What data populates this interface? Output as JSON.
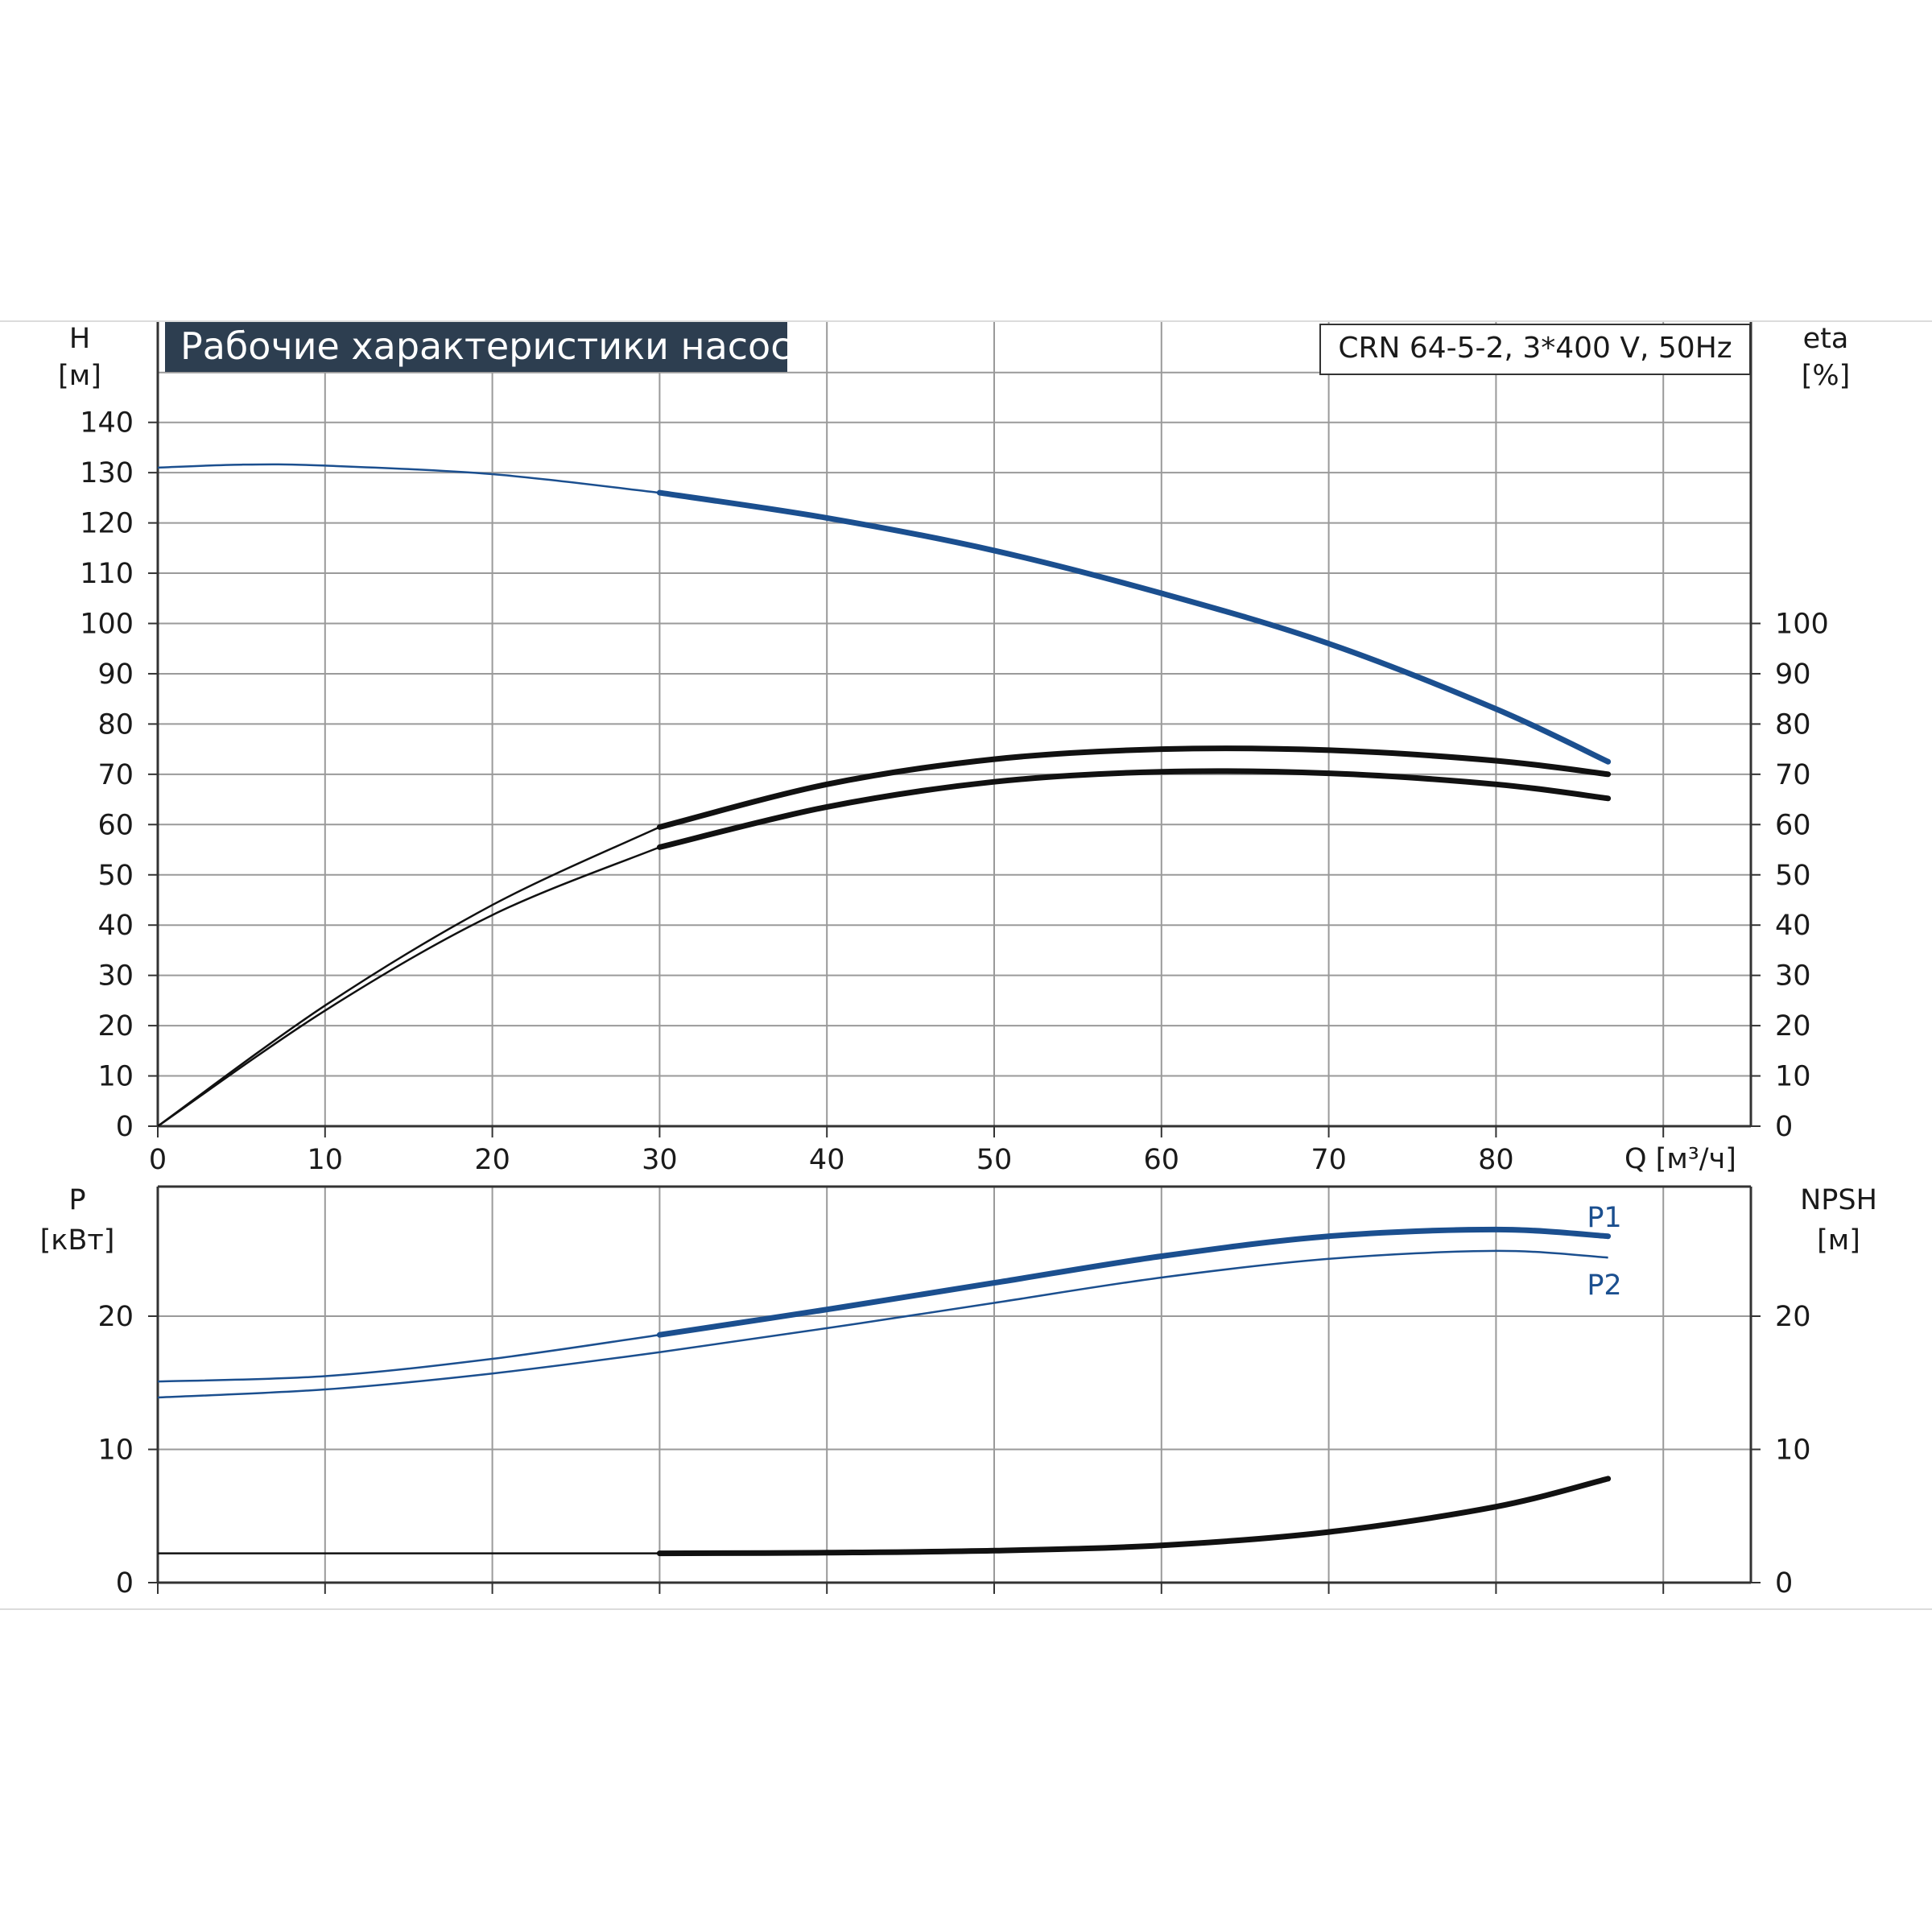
{
  "title": "Рабочие характеристики насоса",
  "model": "CRN 64-5-2, 3*400 V, 50Hz",
  "colors": {
    "blue": "#1b4f8f",
    "black": "#111111",
    "title_bg": "#2d3e50",
    "grid": "#9a9a9a"
  },
  "chart_data": [
    {
      "type": "line",
      "name": "head-efficiency",
      "xlabel": "Q [м³/ч]",
      "ylabel_left": [
        "H",
        "[м]"
      ],
      "ylabel_right": [
        "eta",
        "[%]"
      ],
      "x_ticks": [
        "0",
        "10",
        "20",
        "30",
        "40",
        "50",
        "60",
        "70",
        "80"
      ],
      "y_ticks_left": [
        "0",
        "10",
        "20",
        "30",
        "40",
        "50",
        "60",
        "70",
        "80",
        "90",
        "100",
        "110",
        "120",
        "130",
        "140"
      ],
      "y_ticks_right": [
        "0",
        "10",
        "20",
        "30",
        "40",
        "50",
        "60",
        "70",
        "80",
        "90",
        "100"
      ],
      "xlim": [
        0,
        95
      ],
      "ylim": [
        0,
        150
      ],
      "grid": true,
      "series": [
        {
          "key": "H",
          "color": "#1b4f8f",
          "thick_from": 30,
          "points": [
            [
              0,
              131
            ],
            [
              5,
              131.6
            ],
            [
              10,
              131.4
            ],
            [
              20,
              129.7
            ],
            [
              30,
              126
            ],
            [
              40,
              121
            ],
            [
              50,
              114.5
            ],
            [
              60,
              106
            ],
            [
              70,
              96
            ],
            [
              80,
              83
            ],
            [
              86.7,
              72.5
            ]
          ]
        },
        {
          "key": "eta",
          "color": "#111111",
          "thick_from": 30,
          "points": [
            [
              0,
              0
            ],
            [
              10,
              24
            ],
            [
              20,
              44
            ],
            [
              30,
              59.5
            ],
            [
              40,
              68
            ],
            [
              50,
              73
            ],
            [
              60,
              75
            ],
            [
              70,
              74.8
            ],
            [
              80,
              72.7
            ],
            [
              86.7,
              70
            ]
          ]
        },
        {
          "key": "eta2",
          "color": "#111111",
          "thick_from": 30,
          "points": [
            [
              0,
              0
            ],
            [
              10,
              23
            ],
            [
              20,
              42
            ],
            [
              30,
              55.5
            ],
            [
              40,
              63.5
            ],
            [
              50,
              68.5
            ],
            [
              60,
              70.5
            ],
            [
              70,
              70.2
            ],
            [
              80,
              68
            ],
            [
              86.7,
              65.2
            ]
          ]
        }
      ]
    },
    {
      "type": "line",
      "name": "power-npsh",
      "xlabel": "",
      "ylabel_left": [
        "P",
        "[кВт]"
      ],
      "ylabel_right": [
        "NPSH",
        "[м]"
      ],
      "y_ticks_left": [
        "0",
        "10",
        "20"
      ],
      "y_ticks_right": [
        "0",
        "10",
        "20"
      ],
      "xlim": [
        0,
        95
      ],
      "ylim": [
        0,
        30
      ],
      "grid": true,
      "series": [
        {
          "key": "P1",
          "name": "P1",
          "color": "#1b4f8f",
          "thick_from": 30,
          "points": [
            [
              0,
              15.1
            ],
            [
              10,
              15.5
            ],
            [
              20,
              16.8
            ],
            [
              30,
              18.6
            ],
            [
              40,
              20.5
            ],
            [
              50,
              22.5
            ],
            [
              60,
              24.5
            ],
            [
              70,
              26
            ],
            [
              80,
              26.5
            ],
            [
              86.7,
              26
            ]
          ]
        },
        {
          "key": "P2",
          "name": "P2",
          "color": "#1b4f8f",
          "thick_from": 86.8,
          "points": [
            [
              0,
              13.9
            ],
            [
              10,
              14.5
            ],
            [
              20,
              15.7
            ],
            [
              30,
              17.3
            ],
            [
              40,
              19.1
            ],
            [
              50,
              21
            ],
            [
              60,
              22.9
            ],
            [
              70,
              24.3
            ],
            [
              80,
              24.9
            ],
            [
              86.7,
              24.4
            ]
          ]
        },
        {
          "key": "NPSH",
          "color": "#111111",
          "thick_from": 30,
          "points": [
            [
              0,
              2.2
            ],
            [
              10,
              2.2
            ],
            [
              20,
              2.2
            ],
            [
              30,
              2.2
            ],
            [
              40,
              2.25
            ],
            [
              50,
              2.4
            ],
            [
              60,
              2.8
            ],
            [
              70,
              3.8
            ],
            [
              80,
              5.7
            ],
            [
              86.7,
              7.8
            ]
          ]
        }
      ]
    }
  ]
}
